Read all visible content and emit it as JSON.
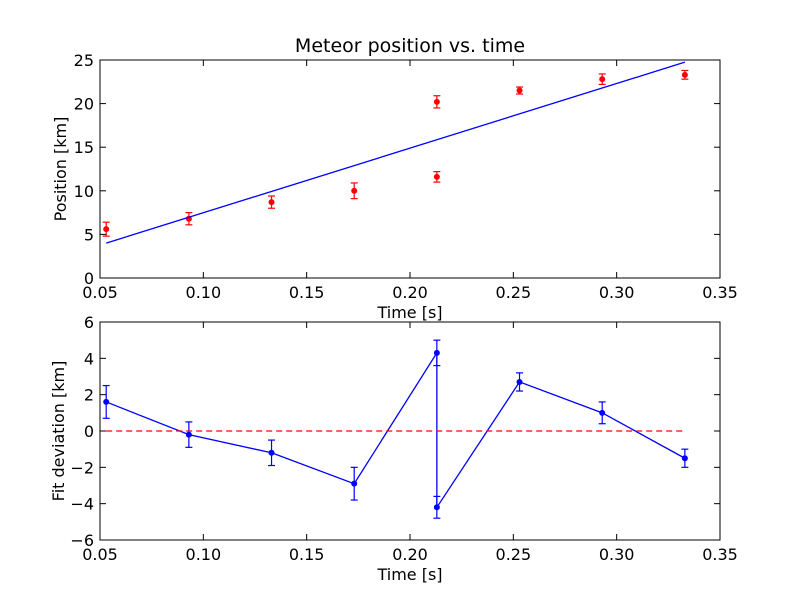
{
  "chart_data": [
    {
      "type": "scatter",
      "title": "Meteor position vs. time",
      "xlabel": "Time [s]",
      "ylabel": "Position [km]",
      "xlim": [
        0.05,
        0.35
      ],
      "ylim": [
        0,
        25
      ],
      "xticks": [
        0.05,
        0.1,
        0.15,
        0.2,
        0.25,
        0.3,
        0.35
      ],
      "xtick_labels": [
        "0.05",
        "0.10",
        "0.15",
        "0.20",
        "0.25",
        "0.30",
        "0.35"
      ],
      "yticks": [
        0,
        5,
        10,
        15,
        20,
        25
      ],
      "ytick_labels": [
        "0",
        "5",
        "10",
        "15",
        "20",
        "25"
      ],
      "grid": false,
      "series": [
        {
          "kind": "errorbar-points",
          "color": "#ff0000",
          "x": [
            0.053,
            0.093,
            0.133,
            0.173,
            0.213,
            0.213,
            0.253,
            0.293,
            0.333
          ],
          "y": [
            5.6,
            6.8,
            8.7,
            10.0,
            11.6,
            20.2,
            21.5,
            22.8,
            23.3
          ],
          "yerr": [
            0.8,
            0.7,
            0.7,
            0.9,
            0.6,
            0.7,
            0.4,
            0.6,
            0.5
          ]
        },
        {
          "kind": "fit-line",
          "color": "#0000ff",
          "x": [
            0.053,
            0.333
          ],
          "y": [
            4.0,
            24.75
          ]
        }
      ]
    },
    {
      "type": "line",
      "title": "",
      "xlabel": "Time [s]",
      "ylabel": "Fit deviation [km]",
      "xlim": [
        0.05,
        0.35
      ],
      "ylim": [
        -6,
        6
      ],
      "xticks": [
        0.05,
        0.1,
        0.15,
        0.2,
        0.25,
        0.3,
        0.35
      ],
      "xtick_labels": [
        "0.05",
        "0.10",
        "0.15",
        "0.20",
        "0.25",
        "0.30",
        "0.35"
      ],
      "yticks": [
        -6,
        -4,
        -2,
        0,
        2,
        4,
        6
      ],
      "ytick_labels": [
        "−6",
        "−4",
        "−2",
        "0",
        "2",
        "4",
        "6"
      ],
      "grid": false,
      "series": [
        {
          "kind": "errorbar-line",
          "color": "#0000ff",
          "x": [
            0.053,
            0.093,
            0.133,
            0.173,
            0.213,
            0.213,
            0.253,
            0.293,
            0.333
          ],
          "y": [
            1.6,
            -0.2,
            -1.2,
            -2.9,
            4.3,
            -4.2,
            2.7,
            1.0,
            -1.5
          ],
          "yerr": [
            0.9,
            0.7,
            0.7,
            0.9,
            0.7,
            0.6,
            0.5,
            0.6,
            0.5
          ]
        },
        {
          "kind": "reference-line",
          "color": "#ff0000",
          "dashed": true,
          "x": [
            0.053,
            0.333
          ],
          "y": [
            0,
            0
          ]
        }
      ]
    }
  ]
}
